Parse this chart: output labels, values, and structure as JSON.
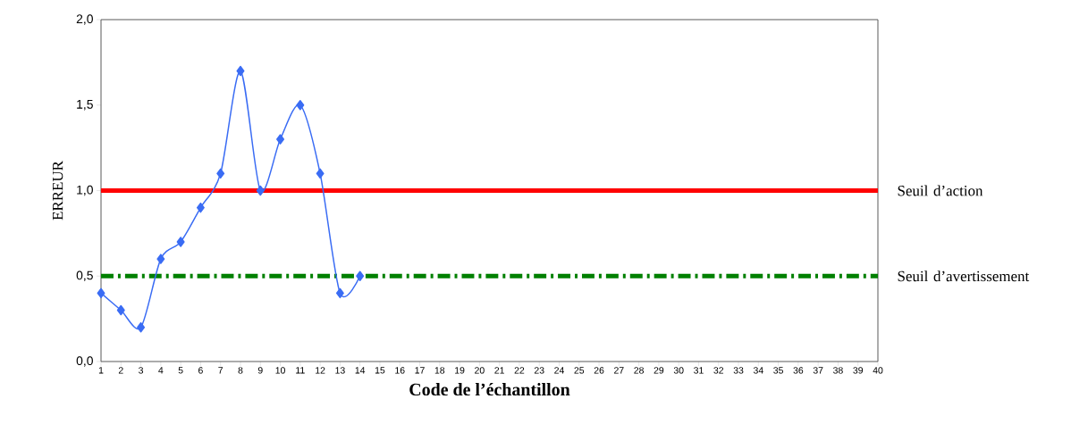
{
  "chart_data": {
    "type": "line",
    "xlabel": "Code de l’échantillon",
    "ylabel": "ERREUR",
    "categories": [
      "1",
      "2",
      "3",
      "4",
      "5",
      "6",
      "7",
      "8",
      "9",
      "10",
      "11",
      "12",
      "13",
      "14",
      "15",
      "16",
      "17",
      "18",
      "19",
      "20",
      "21",
      "22",
      "23",
      "24",
      "25",
      "26",
      "27",
      "28",
      "29",
      "30",
      "31",
      "32",
      "33",
      "34",
      "35",
      "36",
      "37",
      "38",
      "39",
      "40"
    ],
    "series": [
      {
        "color": "#3a6cf4",
        "values": [
          0.4,
          0.3,
          0.2,
          0.6,
          0.7,
          0.9,
          1.1,
          1.7,
          1.0,
          1.3,
          1.5,
          1.1,
          0.4,
          0.5,
          null,
          null,
          null,
          null,
          null,
          null,
          null,
          null,
          null,
          null,
          null,
          null,
          null,
          null,
          null,
          null,
          null,
          null,
          null,
          null,
          null,
          null,
          null,
          null,
          null,
          null
        ]
      }
    ],
    "ylim": [
      0,
      2
    ],
    "yticks": [
      {
        "value": 0,
        "label": "0,0"
      },
      {
        "value": 0.5,
        "label": "0,5"
      },
      {
        "value": 1,
        "label": "1,0"
      },
      {
        "value": 1.5,
        "label": "1,5"
      },
      {
        "value": 2,
        "label": "2,0"
      }
    ],
    "marker": "diamond",
    "line_style": "solid",
    "grid": false,
    "ref_lines": [
      {
        "axis": "y",
        "value": 1,
        "label": "Seuil d’action",
        "color": "#ff0000",
        "line_style": "solid"
      },
      {
        "axis": "y",
        "value": 0.5,
        "label": "Seuil d’avertissement",
        "color": "#008000",
        "line_style": "dashdot"
      }
    ]
  }
}
